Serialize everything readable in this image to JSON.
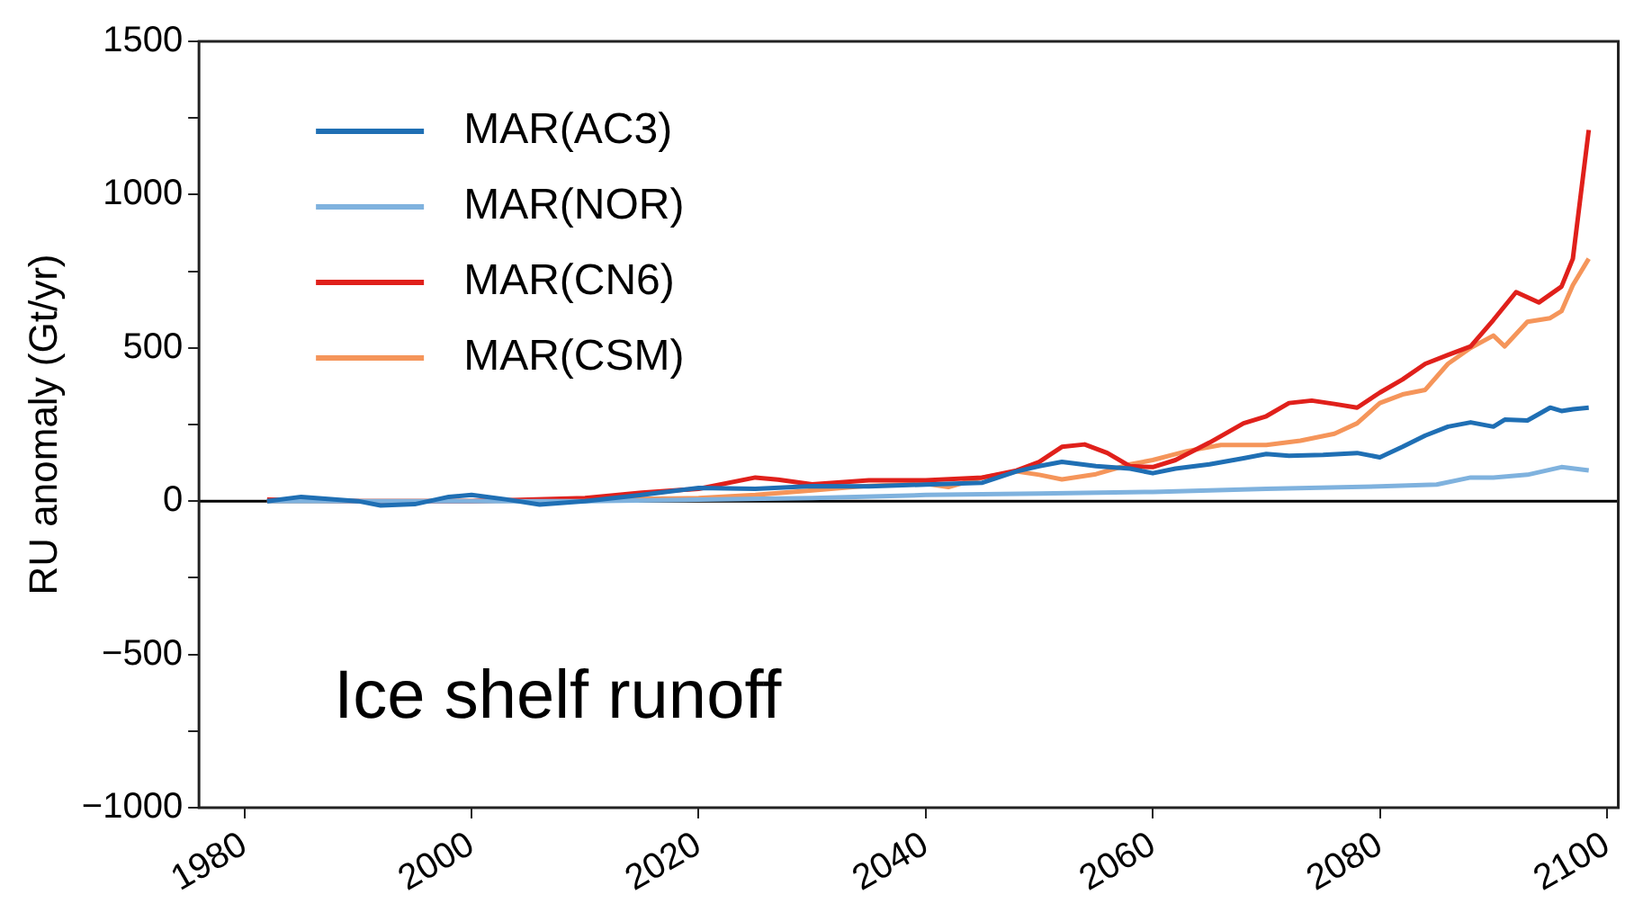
{
  "chart_data": {
    "type": "line",
    "ylabel": "RU anomaly (Gt/yr)",
    "xlim": [
      1976,
      2101
    ],
    "xticks": [
      1980,
      2000,
      2020,
      2040,
      2060,
      2080,
      2100
    ],
    "ylim": [
      -1000,
      1500
    ],
    "yticks": [
      -1000,
      {
        "value": -750,
        "label": null
      },
      -500,
      {
        "value": -250,
        "label": null
      },
      0,
      {
        "value": 250,
        "label": null
      },
      500,
      {
        "value": 750,
        "label": null
      },
      1000,
      {
        "value": 1250,
        "label": null
      },
      1500
    ],
    "grid": false,
    "legend": "top left",
    "marker": "none",
    "line_style": "solid",
    "ref_lines": [
      {
        "axis": "y",
        "value": 0,
        "color": "#000000"
      }
    ],
    "annotations": [
      "Ice shelf runoff"
    ],
    "series": [
      {
        "name": "MAR(AC3)",
        "color": "#1f6fb4",
        "x": [
          1982,
          1985,
          1990,
          1992,
          1995,
          1998,
          2000,
          2003,
          2006,
          2010,
          2015,
          2020,
          2025,
          2030,
          2035,
          2040,
          2045,
          2048,
          2050,
          2052,
          2055,
          2058,
          2060,
          2062,
          2065,
          2068,
          2070,
          2072,
          2075,
          2078,
          2080,
          2082,
          2084,
          2086,
          2088,
          2090,
          2091,
          2093,
          2095,
          2096,
          2097,
          2098.4
        ],
        "values": [
          0,
          14,
          0,
          -14,
          -10,
          14,
          20,
          6,
          -11,
          0,
          20,
          43,
          40,
          49,
          48,
          54,
          60,
          97,
          114,
          128,
          114,
          106,
          91,
          106,
          120,
          140,
          154,
          148,
          151,
          157,
          143,
          177,
          214,
          243,
          257,
          243,
          266,
          263,
          305,
          294,
          300,
          305
        ]
      },
      {
        "name": "MAR(NOR)",
        "color": "#7fb2de",
        "x": [
          1982,
          1990,
          2000,
          2010,
          2020,
          2030,
          2040,
          2050,
          2060,
          2070,
          2080,
          2085,
          2088,
          2090,
          2093,
          2096,
          2098.4
        ],
        "values": [
          0,
          0,
          0,
          0,
          5,
          10,
          20,
          25,
          30,
          40,
          48,
          54,
          77,
          77,
          86,
          111,
          100
        ]
      },
      {
        "name": "MAR(CN6)",
        "color": "#e0201b",
        "x": [
          1982,
          1990,
          2000,
          2010,
          2015,
          2020,
          2025,
          2027,
          2030,
          2035,
          2040,
          2045,
          2048,
          2050,
          2052,
          2054,
          2056,
          2058,
          2060,
          2062,
          2065,
          2068,
          2070,
          2072,
          2074,
          2076,
          2078,
          2080,
          2082,
          2084,
          2086,
          2088,
          2090,
          2092,
          2094,
          2096,
          2097,
          2098.4
        ],
        "values": [
          5,
          0,
          0,
          10,
          28,
          40,
          77,
          70,
          55,
          68,
          68,
          77,
          100,
          128,
          177,
          185,
          157,
          114,
          111,
          134,
          191,
          254,
          277,
          320,
          328,
          317,
          305,
          354,
          397,
          448,
          477,
          505,
          591,
          682,
          648,
          700,
          791,
          1211
        ]
      },
      {
        "name": "MAR(CSM)",
        "color": "#f5955a",
        "x": [
          1982,
          1990,
          2000,
          2010,
          2020,
          2025,
          2030,
          2035,
          2040,
          2042,
          2045,
          2048,
          2050,
          2052,
          2055,
          2058,
          2060,
          2063,
          2066,
          2070,
          2073,
          2076,
          2078,
          2080,
          2082,
          2084,
          2086,
          2088,
          2090,
          2091,
          2093,
          2095,
          2096,
          2097,
          2098.4
        ],
        "values": [
          0,
          0,
          0,
          5,
          10,
          20,
          35,
          50,
          57,
          46,
          77,
          97,
          86,
          71,
          88,
          120,
          134,
          163,
          183,
          183,
          197,
          220,
          254,
          320,
          348,
          363,
          448,
          500,
          540,
          505,
          585,
          597,
          620,
          705,
          791
        ]
      }
    ]
  }
}
